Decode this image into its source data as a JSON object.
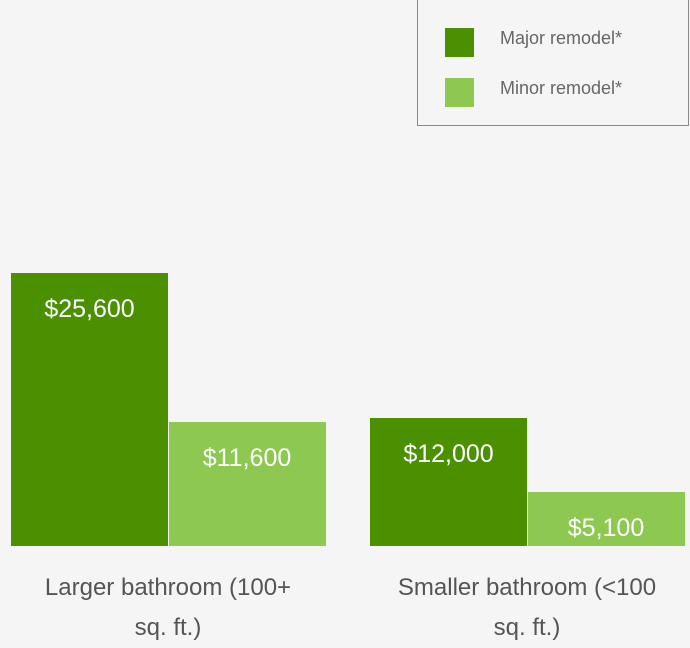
{
  "chart_data": {
    "type": "bar",
    "categories": [
      "Larger bathroom (100+ sq. ft.)",
      "Smaller bathroom (<100 sq. ft.)"
    ],
    "series": [
      {
        "name": "Major remodel*",
        "color": "#4a9000",
        "values": [
          25600,
          12000
        ],
        "value_labels": [
          "$25,600",
          "$12,000"
        ]
      },
      {
        "name": "Minor remodel*",
        "color": "#8dc851",
        "values": [
          11600,
          5100
        ],
        "value_labels": [
          "$11,600",
          "$5,100"
        ]
      }
    ],
    "legend": "top-right"
  }
}
